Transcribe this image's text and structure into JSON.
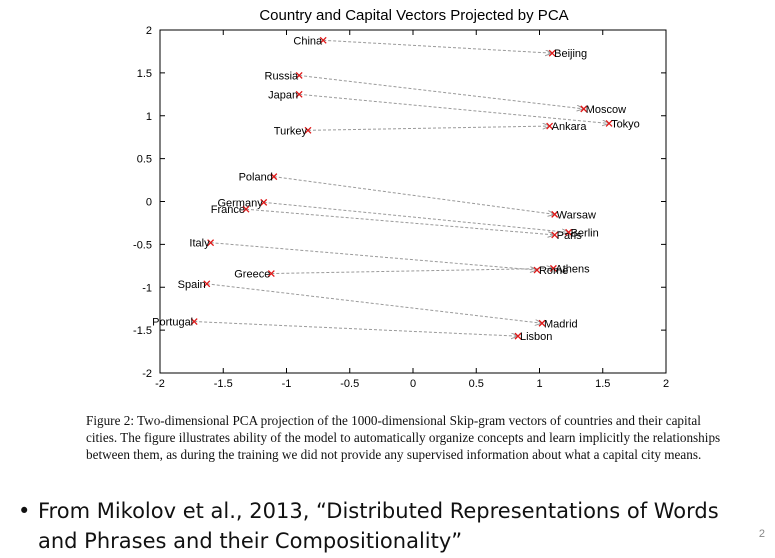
{
  "slide": {
    "caption": "Figure 2: Two-dimensional PCA projection of the 1000-dimensional Skip-gram vectors of countries and their capital cities. The figure illustrates ability of the model to automatically organize concepts and learn implicitly the relationships between them, as during the training we did not provide any supervised information about what a capital city means.",
    "bullet_symbol": "•",
    "bullet_text": "From Mikolov et al., 2013, “Distributed Representations of Words and Phrases and their Compositionality”",
    "page_number": "2"
  },
  "chart_data": {
    "type": "scatter",
    "title": "Country and Capital Vectors Projected by PCA",
    "xlim": [
      -2,
      2
    ],
    "ylim": [
      -2,
      2
    ],
    "xticks": [
      -2,
      -1.5,
      -1,
      -0.5,
      0,
      0.5,
      1,
      1.5,
      2
    ],
    "yticks": [
      -2,
      -1.5,
      -1,
      -0.5,
      0,
      0.5,
      1,
      1.5,
      2
    ],
    "grid": false,
    "colors": {
      "point": "#e01818",
      "arrow": "#9a9a9a",
      "axis": "#000000"
    },
    "pairs": [
      {
        "country": "China",
        "cx": -0.71,
        "cy": 1.88,
        "capital": "Beijing",
        "px": 1.1,
        "py": 1.73
      },
      {
        "country": "Russia",
        "cx": -0.9,
        "cy": 1.47,
        "capital": "Moscow",
        "px": 1.35,
        "py": 1.08
      },
      {
        "country": "Japan",
        "cx": -0.9,
        "cy": 1.25,
        "capital": "Tokyo",
        "px": 1.55,
        "py": 0.91
      },
      {
        "country": "Turkey",
        "cx": -0.83,
        "cy": 0.83,
        "capital": "Ankara",
        "px": 1.08,
        "py": 0.88
      },
      {
        "country": "Poland",
        "cx": -1.1,
        "cy": 0.29,
        "capital": "Warsaw",
        "px": 1.12,
        "py": -0.15
      },
      {
        "country": "Germany",
        "cx": -1.18,
        "cy": -0.01,
        "capital": "Berlin",
        "px": 1.23,
        "py": -0.36
      },
      {
        "country": "France",
        "cx": -1.32,
        "cy": -0.09,
        "capital": "Paris",
        "px": 1.12,
        "py": -0.39
      },
      {
        "country": "Italy",
        "cx": -1.6,
        "cy": -0.48,
        "capital": "Rome",
        "px": 0.98,
        "py": -0.8
      },
      {
        "country": "Greece",
        "cx": -1.12,
        "cy": -0.84,
        "capital": "Athens",
        "px": 1.11,
        "py": -0.78
      },
      {
        "country": "Spain",
        "cx": -1.63,
        "cy": -0.96,
        "capital": "Madrid",
        "px": 1.02,
        "py": -1.42
      },
      {
        "country": "Portugal",
        "cx": -1.73,
        "cy": -1.4,
        "capital": "Lisbon",
        "px": 0.83,
        "py": -1.57
      }
    ]
  }
}
